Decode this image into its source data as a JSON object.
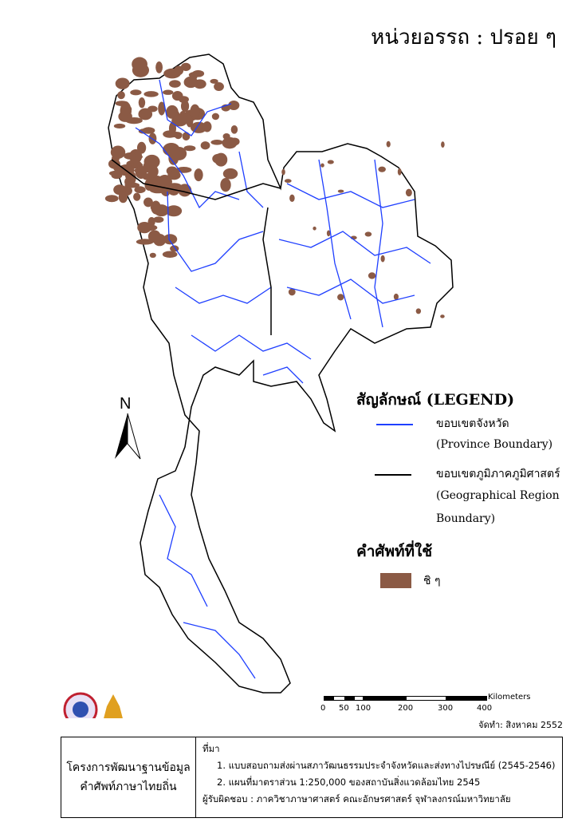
{
  "title": "หน่วยอรรถ : ปรอย ๆ",
  "legend": {
    "heading": "สัญลักษณ์ (LEGEND)",
    "items": [
      {
        "label_th": "ขอบเขตจังหวัด",
        "label_en": "(Province Boundary)",
        "color": "#1f3fff"
      },
      {
        "label_th": "ขอบเขตภูมิภาคภูมิศาสตร์",
        "label_en": "(Geographical Region",
        "label_en2": "Boundary)",
        "color": "#000000"
      }
    ],
    "terms_heading": "คำศัพท์ที่ใช้",
    "terms": [
      {
        "label": "ชิ ๆ",
        "color": "#8b5a45"
      }
    ]
  },
  "north_label": "N",
  "scale": {
    "unit": "Kilometers",
    "ticks": [
      "0",
      "50",
      "100",
      "200",
      "300",
      "400"
    ]
  },
  "date": "จัดทำ: สิงหาคม 2552",
  "footer": {
    "project_line1": "โครงการพัฒนาฐานข้อมูล",
    "project_line2": "คำศัพท์ภาษาไทยถิ่น",
    "source_heading": "ที่มา",
    "source1": "1. แบบสอบถามส่งผ่านสภาวัฒนธรรมประจำจังหวัดและส่งทางไปรษณีย์ (2545-2546)",
    "source2": "2. แผนที่มาตราส่วน 1:250,000 ของสถาบันสิ่งแวดล้อมไทย 2545",
    "responsible": "ผู้รับผิดชอบ : ภาควิชาภาษาศาสตร์ คณะอักษรศาสตร์ จุฬาลงกรณ์มหาวิทยาลัย"
  }
}
